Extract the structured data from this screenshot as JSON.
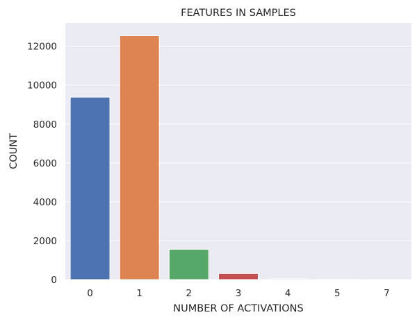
{
  "chart_data": {
    "type": "bar",
    "title": "FEATURES IN SAMPLES",
    "xlabel": "NUMBER OF ACTIVATIONS",
    "ylabel": "COUNT",
    "categories": [
      "0",
      "1",
      "2",
      "3",
      "4",
      "5",
      "7"
    ],
    "values": [
      9380,
      12540,
      1560,
      310,
      40,
      10,
      5
    ],
    "colors": [
      "#4c72b0",
      "#dd8452",
      "#55a868",
      "#c44e52",
      "#8172b3",
      "#937860",
      "#da8bc3"
    ],
    "ylim": [
      0,
      13200
    ],
    "yticks": [
      0,
      2000,
      4000,
      6000,
      8000,
      10000,
      12000
    ],
    "ytick_labels": [
      "0",
      "2000",
      "4000",
      "6000",
      "8000",
      "10000",
      "12000"
    ],
    "grid": true,
    "plot_background": "#eaeaf2",
    "grid_color": "#ffffff"
  }
}
